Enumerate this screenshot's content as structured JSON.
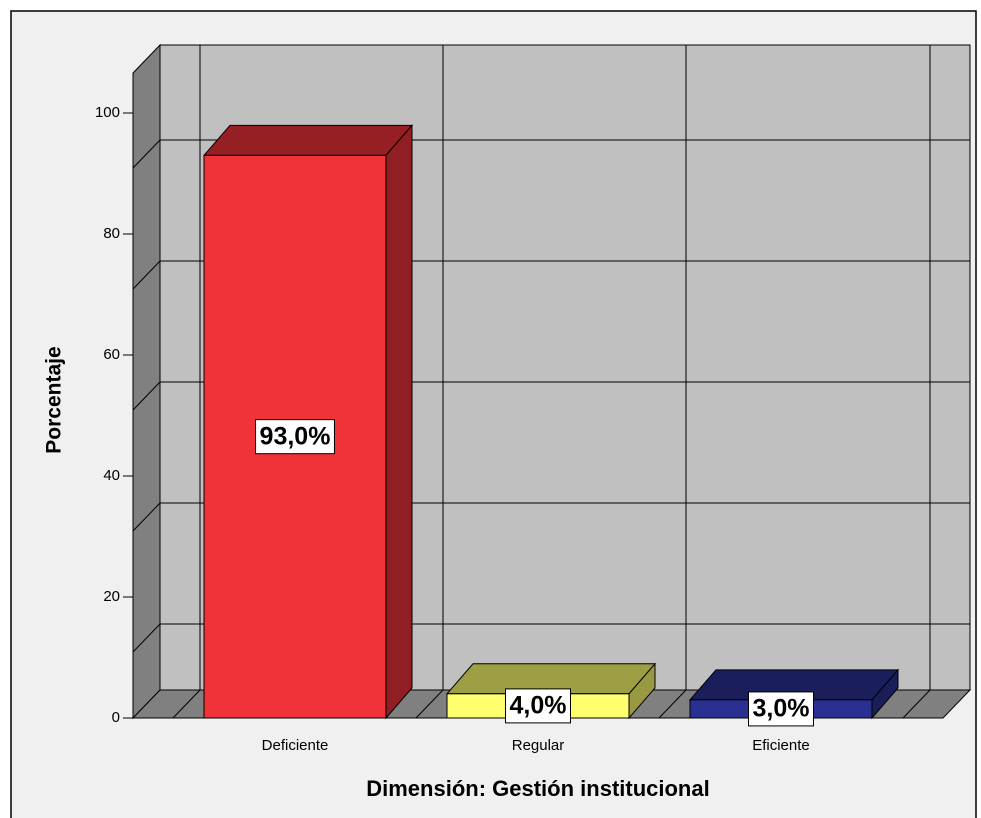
{
  "chart_data": {
    "type": "bar3d",
    "x_label": "Dimensión: Gestión institucional",
    "y_label": "Porcentaje",
    "categories": [
      "Deficiente",
      "Regular",
      "Eficiente"
    ],
    "values": [
      93.0,
      4.0,
      3.0
    ],
    "value_labels": [
      "93,0%",
      "4,0%",
      "3,0%"
    ],
    "colors": [
      "#f03239",
      "#ffff70",
      "#2a3092"
    ],
    "ylim": [
      0,
      100
    ],
    "yticks": [
      0,
      20,
      40,
      60,
      80,
      100
    ],
    "grid": true
  }
}
